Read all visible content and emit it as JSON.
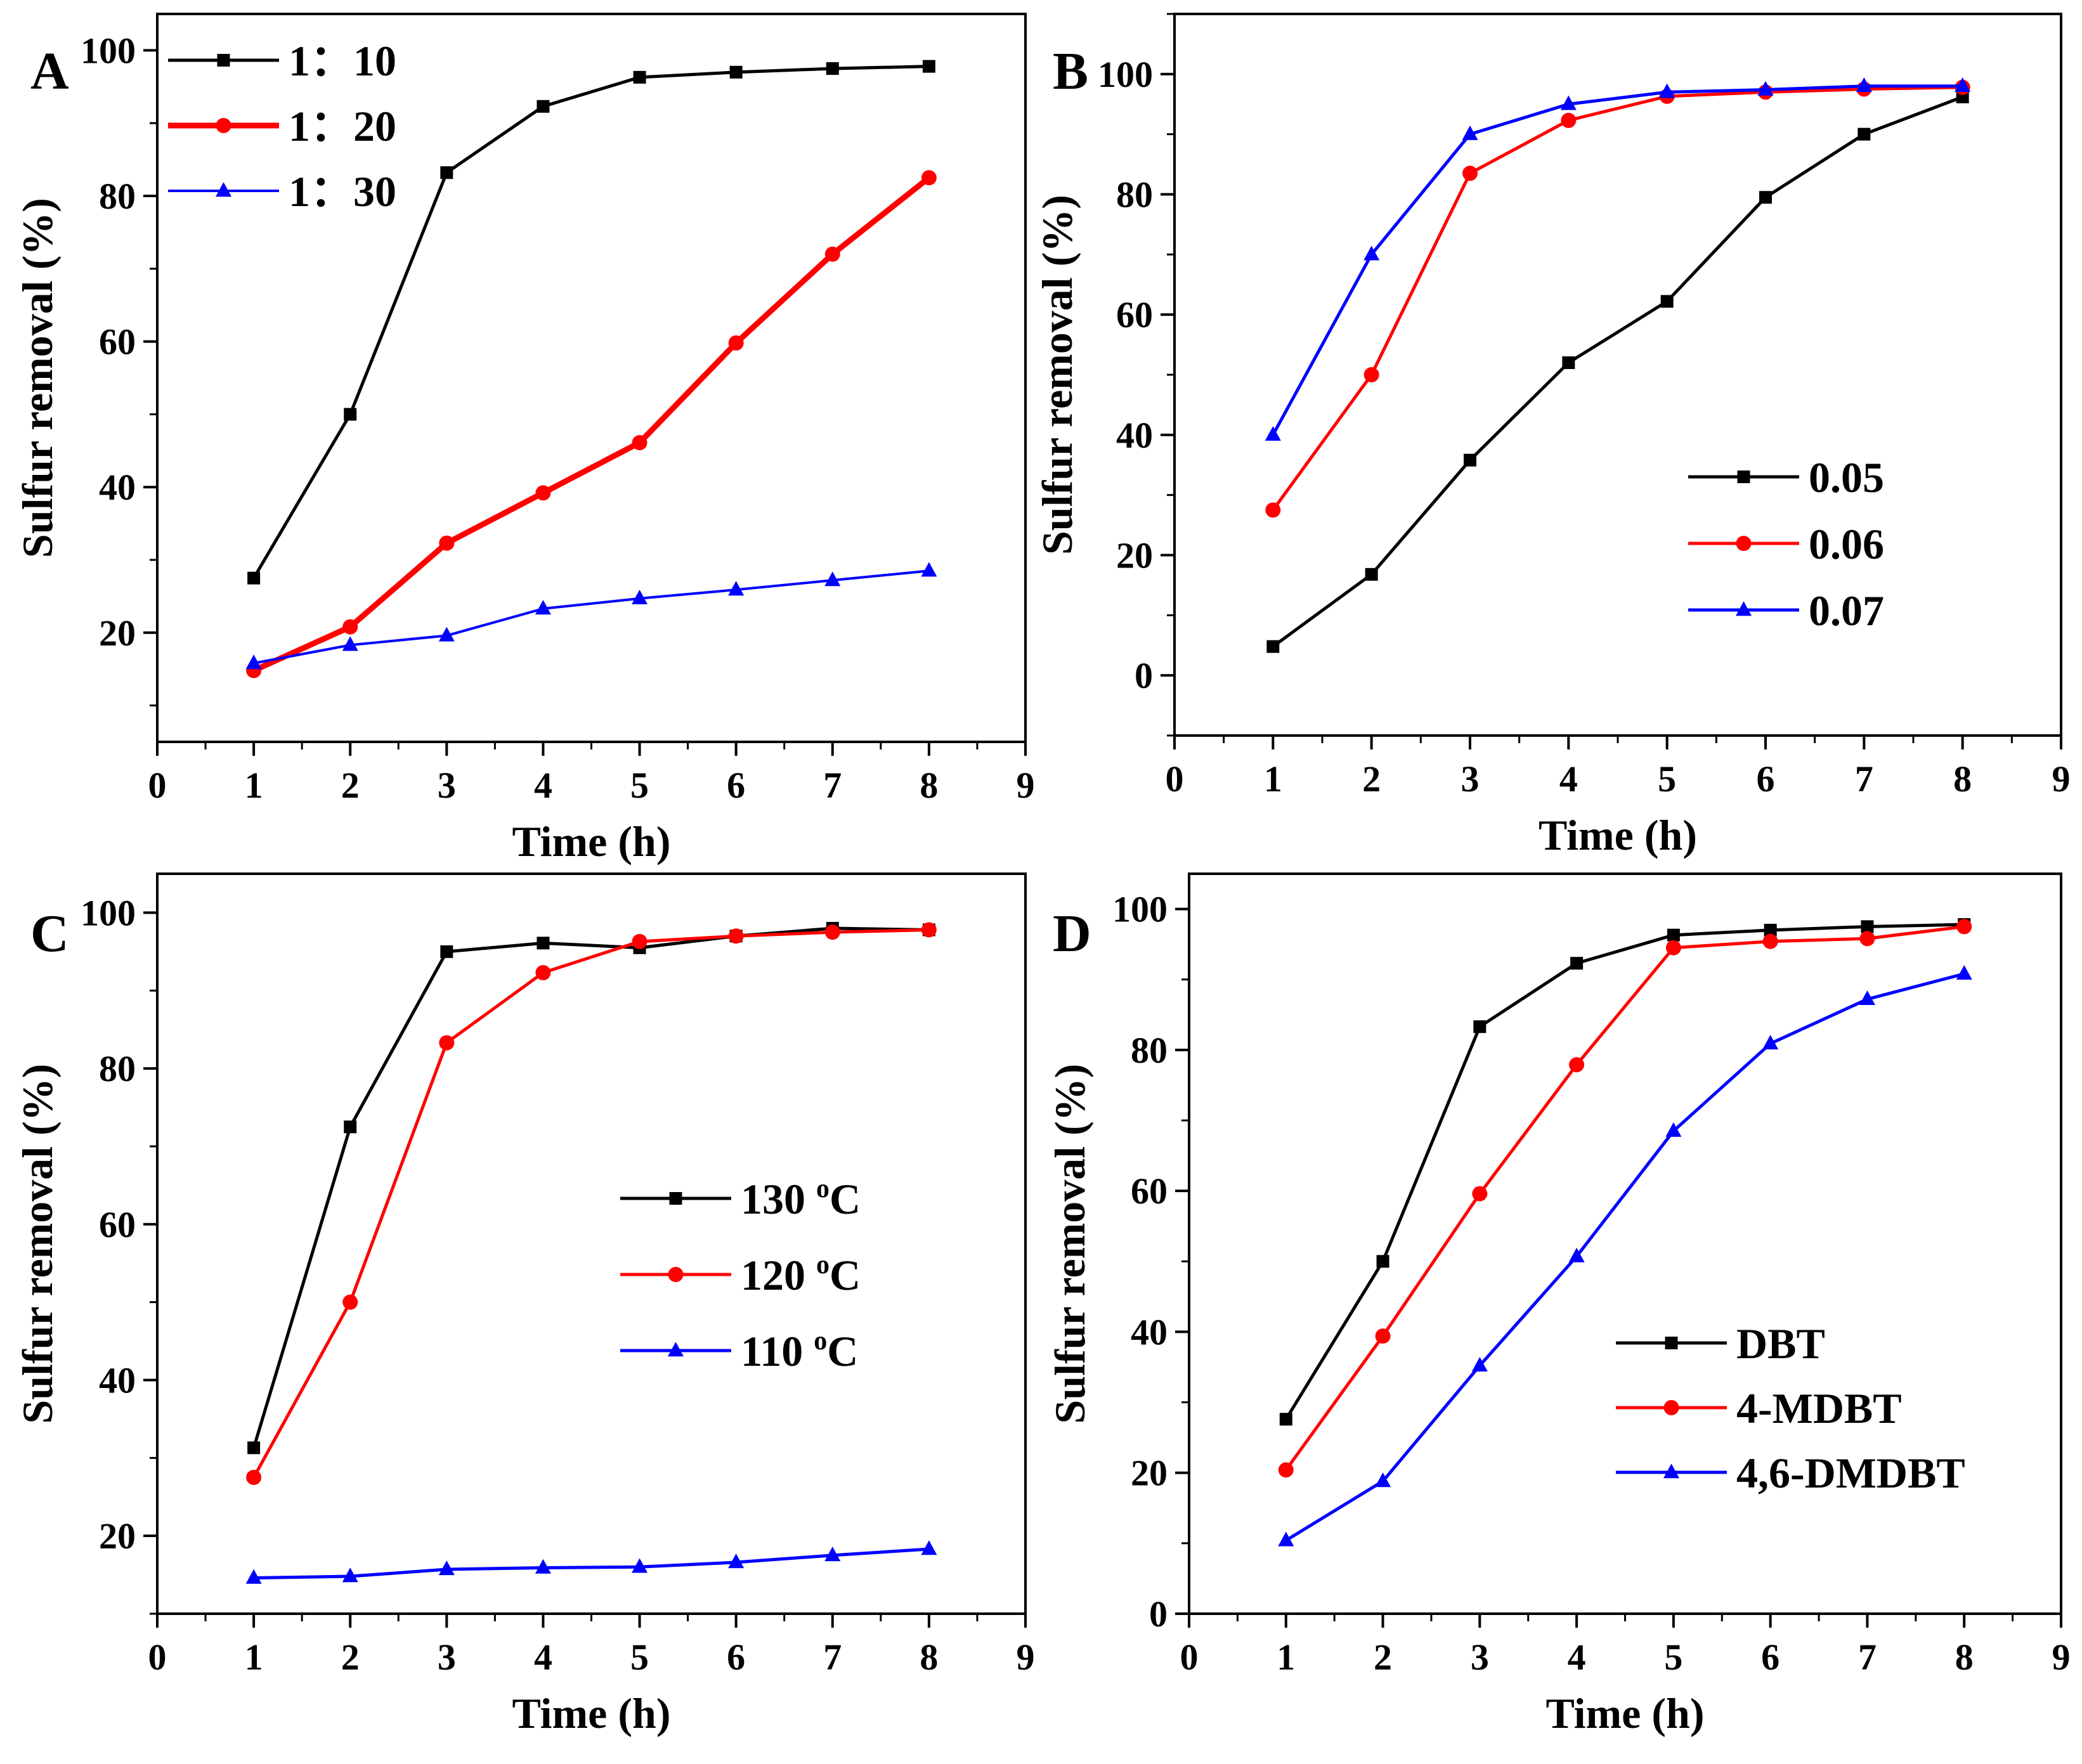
{
  "chart_data": [
    {
      "type": "line",
      "panel_label": "A",
      "xlabel": "Time (h)",
      "ylabel": "Sulfur removal (%)",
      "xlim": [
        0,
        9
      ],
      "ylim": [
        5,
        105
      ],
      "xticks": [
        "0",
        "1",
        "2",
        "3",
        "4",
        "5",
        "6",
        "7",
        "8",
        "9"
      ],
      "yticks": [
        "20",
        "40",
        "60",
        "80",
        "100"
      ],
      "legend_position": "top-left",
      "series": [
        {
          "name": "1：10",
          "color": "#000000",
          "marker": "square",
          "x": [
            1,
            2,
            3,
            4,
            5,
            6,
            7,
            8
          ],
          "values": [
            27.5,
            50,
            83.2,
            92.3,
            96.3,
            97,
            97.5,
            97.8
          ]
        },
        {
          "name": "1：20",
          "color": "#ff0000",
          "marker": "circle",
          "x": [
            1,
            2,
            3,
            4,
            5,
            6,
            7,
            8
          ],
          "values": [
            14.8,
            20.8,
            32.3,
            39.2,
            46.1,
            59.8,
            72,
            82.5
          ]
        },
        {
          "name": "1：30",
          "color": "#0000ff",
          "marker": "triangle",
          "x": [
            1,
            2,
            3,
            4,
            5,
            6,
            7,
            8
          ],
          "values": [
            15.8,
            18.3,
            19.6,
            23.3,
            24.7,
            25.9,
            27.2,
            28.5
          ]
        }
      ]
    },
    {
      "type": "line",
      "panel_label": "B",
      "xlabel": "Time (h)",
      "ylabel": "Sulfur removal (%)",
      "xlim": [
        0,
        9
      ],
      "ylim": [
        -10,
        110
      ],
      "xticks": [
        "0",
        "1",
        "2",
        "3",
        "4",
        "5",
        "6",
        "7",
        "8",
        "9"
      ],
      "yticks": [
        "0",
        "20",
        "40",
        "60",
        "80",
        "100"
      ],
      "legend_position": "middle-right",
      "series": [
        {
          "name": "0.05",
          "color": "#000000",
          "marker": "square",
          "x": [
            1,
            2,
            3,
            4,
            5,
            6,
            7,
            8
          ],
          "values": [
            4.8,
            16.8,
            35.8,
            52,
            62.2,
            79.5,
            90,
            96.2
          ]
        },
        {
          "name": "0.06",
          "color": "#ff0000",
          "marker": "circle",
          "x": [
            1,
            2,
            3,
            4,
            5,
            6,
            7,
            8
          ],
          "values": [
            27.5,
            50,
            83.5,
            92.3,
            96.3,
            97,
            97.5,
            97.8
          ]
        },
        {
          "name": "0.07",
          "color": "#0000ff",
          "marker": "triangle",
          "x": [
            1,
            2,
            3,
            4,
            5,
            6,
            7,
            8
          ],
          "values": [
            40,
            70,
            90,
            95,
            97,
            97.4,
            98,
            98
          ]
        }
      ]
    },
    {
      "type": "line",
      "panel_label": "C",
      "xlabel": "Time (h)",
      "ylabel": "Sulfur removal (%)",
      "xlim": [
        0,
        9
      ],
      "ylim": [
        10,
        105
      ],
      "xticks": [
        "0",
        "1",
        "2",
        "3",
        "4",
        "5",
        "6",
        "7",
        "8",
        "9"
      ],
      "yticks": [
        "20",
        "40",
        "60",
        "80",
        "100"
      ],
      "legend_position": "middle-right",
      "series": [
        {
          "name": "130 °C",
          "label_main": "130",
          "label_sup": "o",
          "label_unit": "C",
          "color": "#000000",
          "marker": "square",
          "x": [
            1,
            2,
            3,
            4,
            5,
            6,
            7,
            8
          ],
          "values": [
            31.3,
            72.5,
            95,
            96.1,
            95.5,
            97,
            98,
            97.8
          ]
        },
        {
          "name": "120 °C",
          "label_main": "120",
          "label_sup": "o",
          "label_unit": "C",
          "color": "#ff0000",
          "marker": "circle",
          "x": [
            1,
            2,
            3,
            4,
            5,
            6,
            7,
            8
          ],
          "values": [
            27.5,
            50,
            83.3,
            92.3,
            96.3,
            97,
            97.5,
            97.8
          ]
        },
        {
          "name": "110 °C",
          "label_main": "110",
          "label_sup": "o",
          "label_unit": "C",
          "color": "#0000ff",
          "marker": "triangle",
          "x": [
            1,
            2,
            3,
            4,
            5,
            6,
            7,
            8
          ],
          "values": [
            14.6,
            14.8,
            15.7,
            15.9,
            16,
            16.6,
            17.5,
            18.3
          ]
        }
      ]
    },
    {
      "type": "line",
      "panel_label": "D",
      "xlabel": "Time (h)",
      "ylabel": "Sulfur removal (%)",
      "xlim": [
        0,
        9
      ],
      "ylim": [
        0,
        105
      ],
      "xticks": [
        "0",
        "1",
        "2",
        "3",
        "4",
        "5",
        "6",
        "7",
        "8",
        "9"
      ],
      "yticks": [
        "0",
        "20",
        "40",
        "60",
        "80",
        "100"
      ],
      "legend_position": "bottom-right",
      "series": [
        {
          "name": "DBT",
          "color": "#000000",
          "marker": "square",
          "x": [
            1,
            2,
            3,
            4,
            5,
            6,
            7,
            8
          ],
          "values": [
            27.6,
            50,
            83.3,
            92.3,
            96.3,
            97,
            97.5,
            97.8
          ]
        },
        {
          "name": "4-MDBT",
          "color": "#ff0000",
          "marker": "circle",
          "x": [
            1,
            2,
            3,
            4,
            5,
            6,
            7,
            8
          ],
          "values": [
            20.4,
            39.4,
            59.6,
            77.9,
            94.5,
            95.4,
            95.8,
            97.5
          ]
        },
        {
          "name": "4,6-DMDBT",
          "color": "#0000ff",
          "marker": "triangle",
          "x": [
            1,
            2,
            3,
            4,
            5,
            6,
            7,
            8
          ],
          "values": [
            10.4,
            18.8,
            35.2,
            50.7,
            68.5,
            80.9,
            87.2,
            90.8
          ]
        }
      ]
    }
  ]
}
